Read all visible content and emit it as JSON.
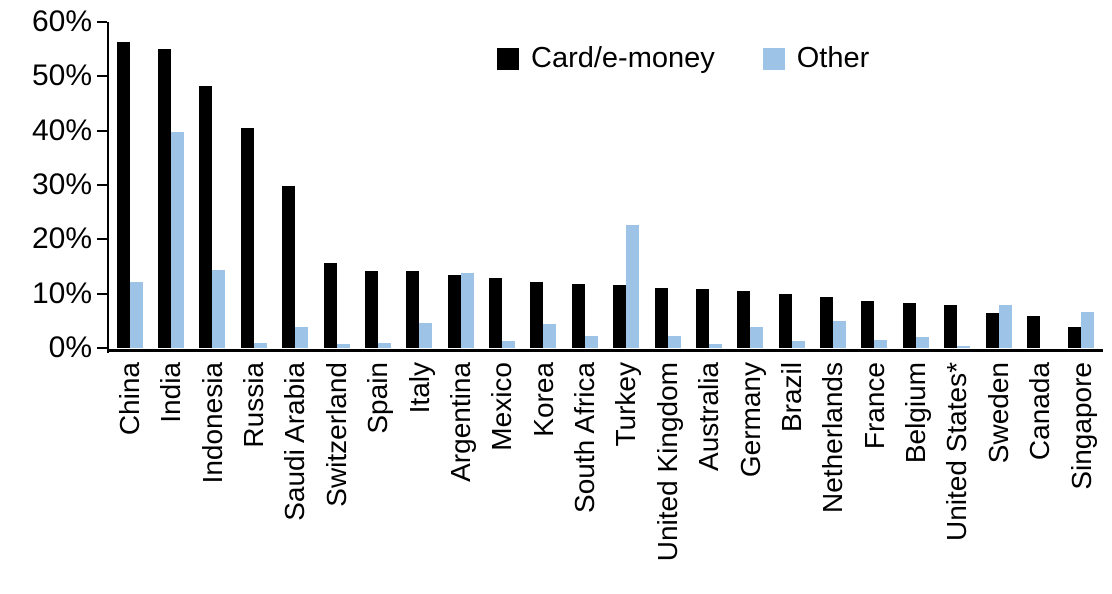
{
  "chart_data": {
    "type": "bar",
    "title": "",
    "categories": [
      "China",
      "India",
      "Indonesia",
      "Russia",
      "Saudi Arabia",
      "Switzerland",
      "Spain",
      "Italy",
      "Argentina",
      "Mexico",
      "Korea",
      "South Africa",
      "Turkey",
      "United Kingdom",
      "Australia",
      "Germany",
      "Brazil",
      "Netherlands",
      "France",
      "Belgium",
      "United States*",
      "Sweden",
      "Canada",
      "Singapore"
    ],
    "series": [
      {
        "name": "Card/e-money",
        "color": "#000000",
        "values": [
          56.3,
          55.0,
          48.3,
          40.5,
          29.8,
          15.6,
          14.2,
          14.1,
          13.4,
          12.9,
          12.2,
          11.8,
          11.6,
          11.1,
          10.8,
          10.5,
          10.0,
          9.3,
          8.7,
          8.2,
          7.9,
          6.4,
          5.9,
          3.9
        ]
      },
      {
        "name": "Other",
        "color": "#9DC3E6",
        "values": [
          12.2,
          39.8,
          14.4,
          0.9,
          3.8,
          0.7,
          0.9,
          4.6,
          13.8,
          1.2,
          4.5,
          2.3,
          22.6,
          2.2,
          0.8,
          3.9,
          1.2,
          4.9,
          1.5,
          2.0,
          0.3,
          8.0,
          0.0,
          6.6
        ]
      }
    ],
    "ylim": [
      0,
      60
    ],
    "ytick_step": 10,
    "ytick_labels": [
      "0%",
      "10%",
      "20%",
      "30%",
      "40%",
      "50%",
      "60%"
    ],
    "grid": false,
    "legend_position": "top-center",
    "axis_color": "#000000"
  }
}
